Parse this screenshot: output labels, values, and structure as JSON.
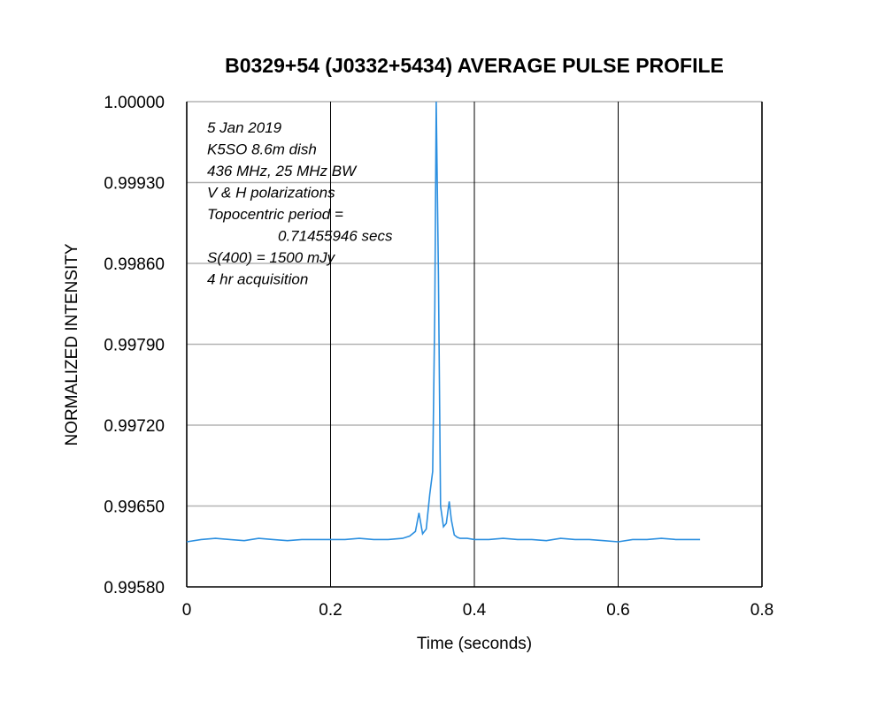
{
  "chart_data": {
    "type": "line",
    "title": "B0329+54 (J0332+5434) AVERAGE PULSE PROFILE",
    "xlabel": "Time (seconds)",
    "ylabel": "NORMALIZED INTENSITY",
    "xlim": [
      0,
      0.8
    ],
    "ylim": [
      0.9958,
      1.0
    ],
    "x_ticks": [
      0,
      0.2,
      0.4,
      0.6,
      0.8
    ],
    "x_tick_labels": [
      "0",
      "0.2",
      "0.4",
      "0.6",
      "0.8"
    ],
    "y_ticks": [
      0.9958,
      0.9965,
      0.9972,
      0.9979,
      0.9986,
      0.9993,
      1.0
    ],
    "y_tick_labels": [
      "0.99580",
      "0.99650",
      "0.99720",
      "0.99790",
      "0.99860",
      "0.99930",
      "1.00000"
    ],
    "grid": {
      "x": true,
      "y": true
    },
    "line_color": "#2b8fe0",
    "series": [
      {
        "x": [
          0,
          0.02,
          0.04,
          0.06,
          0.08,
          0.1,
          0.12,
          0.14,
          0.16,
          0.18,
          0.2,
          0.22,
          0.24,
          0.26,
          0.28,
          0.3,
          0.31,
          0.318,
          0.323,
          0.328,
          0.333,
          0.338,
          0.342,
          0.345,
          0.347,
          0.35,
          0.353,
          0.357,
          0.361,
          0.365,
          0.368,
          0.372,
          0.376,
          0.38,
          0.39,
          0.4,
          0.42,
          0.44,
          0.46,
          0.48,
          0.5,
          0.52,
          0.54,
          0.56,
          0.58,
          0.6,
          0.62,
          0.64,
          0.66,
          0.68,
          0.7,
          0.714
        ],
        "y": [
          0.99619,
          0.99621,
          0.99622,
          0.99621,
          0.9962,
          0.99622,
          0.99621,
          0.9962,
          0.99621,
          0.99621,
          0.99621,
          0.99621,
          0.99622,
          0.99621,
          0.99621,
          0.99622,
          0.99624,
          0.99628,
          0.99644,
          0.99626,
          0.9963,
          0.9966,
          0.9968,
          0.9982,
          1.0,
          0.9985,
          0.9965,
          0.99632,
          0.99635,
          0.99654,
          0.99638,
          0.99625,
          0.99623,
          0.99622,
          0.99622,
          0.99621,
          0.99621,
          0.99622,
          0.99621,
          0.99621,
          0.9962,
          0.99622,
          0.99621,
          0.99621,
          0.9962,
          0.99619,
          0.99621,
          0.99621,
          0.99622,
          0.99621,
          0.99621,
          0.99621
        ]
      }
    ],
    "annotations": [
      "5 Jan 2019",
      "K5SO 8.6m dish",
      "436 MHz, 25 MHz BW",
      "V & H polarizations",
      "Topocentric period =",
      "0.71455946 secs",
      "S(400) = 1500 mJy",
      "4 hr acquisition"
    ]
  }
}
